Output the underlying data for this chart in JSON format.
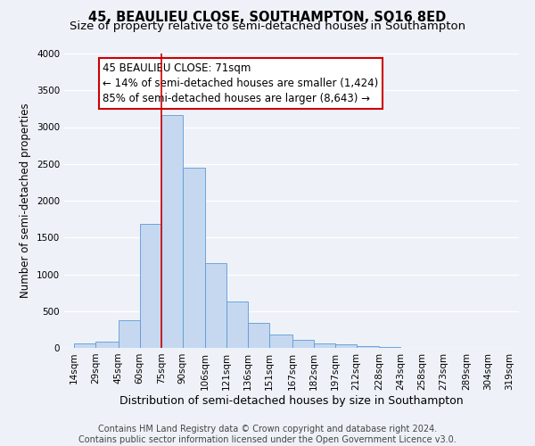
{
  "title": "45, BEAULIEU CLOSE, SOUTHAMPTON, SO16 8ED",
  "subtitle": "Size of property relative to semi-detached houses in Southampton",
  "xlabel": "Distribution of semi-detached houses by size in Southampton",
  "ylabel": "Number of semi-detached properties",
  "bar_left_edges": [
    14,
    29,
    45,
    60,
    75,
    90,
    106,
    121,
    136,
    151,
    167,
    182,
    197,
    212,
    228,
    243,
    258,
    273,
    289,
    304
  ],
  "bar_heights": [
    65,
    80,
    370,
    1680,
    3160,
    2450,
    1150,
    635,
    335,
    185,
    110,
    65,
    45,
    20,
    10,
    5,
    5,
    5,
    5,
    5
  ],
  "bar_widths": [
    15,
    16,
    15,
    15,
    15,
    16,
    15,
    15,
    15,
    16,
    15,
    15,
    15,
    16,
    15,
    15,
    15,
    16,
    15,
    15
  ],
  "bar_color": "#c5d8f0",
  "bar_edgecolor": "#5b9bd5",
  "vline_x": 75,
  "vline_color": "#cc0000",
  "annotation_line1": "45 BEAULIEU CLOSE: 71sqm",
  "annotation_line2": "← 14% of semi-detached houses are smaller (1,424)",
  "annotation_line3": "85% of semi-detached houses are larger (8,643) →",
  "annotation_box_edgecolor": "#cc0000",
  "x_tick_labels": [
    "14sqm",
    "29sqm",
    "45sqm",
    "60sqm",
    "75sqm",
    "90sqm",
    "106sqm",
    "121sqm",
    "136sqm",
    "151sqm",
    "167sqm",
    "182sqm",
    "197sqm",
    "212sqm",
    "228sqm",
    "243sqm",
    "258sqm",
    "273sqm",
    "289sqm",
    "304sqm",
    "319sqm"
  ],
  "x_tick_positions": [
    14,
    29,
    45,
    60,
    75,
    90,
    106,
    121,
    136,
    151,
    167,
    182,
    197,
    212,
    228,
    243,
    258,
    273,
    289,
    304,
    319
  ],
  "ylim": [
    0,
    4000
  ],
  "xlim": [
    7,
    326
  ],
  "yticks": [
    0,
    500,
    1000,
    1500,
    2000,
    2500,
    3000,
    3500,
    4000
  ],
  "footer_text": "Contains HM Land Registry data © Crown copyright and database right 2024.\nContains public sector information licensed under the Open Government Licence v3.0.",
  "background_color": "#eef2f8",
  "plot_background_color": "#eef2f8",
  "grid_color": "#ffffff",
  "title_fontsize": 10.5,
  "subtitle_fontsize": 9.5,
  "xlabel_fontsize": 9,
  "ylabel_fontsize": 8.5,
  "tick_fontsize": 7.5,
  "annot_fontsize": 8.5,
  "footer_fontsize": 7
}
